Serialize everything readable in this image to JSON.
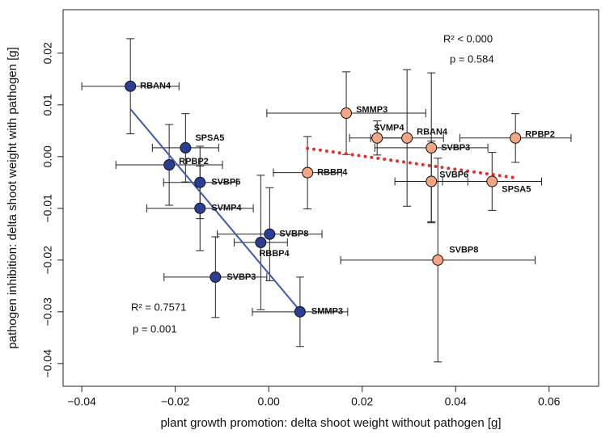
{
  "chart_data": {
    "type": "scatter",
    "x_label": "plant growth promotion: delta shoot weight without pathogen [g]",
    "y_label": "pathogen inhibition: delta shoot weight with pathogen [g]",
    "xlim": [
      -0.044,
      0.0706
    ],
    "ylim": [
      -0.0444,
      0.0284
    ],
    "xticks": [
      {
        "value": -0.04,
        "label": "−0.04"
      },
      {
        "value": -0.02,
        "label": "−0.02"
      },
      {
        "value": 0,
        "label": "0.00"
      },
      0.02,
      0.04,
      0.06
    ],
    "yticks": [
      {
        "value": -0.04,
        "label": "−0.04"
      },
      {
        "value": -0.03,
        "label": "−0.03"
      },
      {
        "value": -0.02,
        "label": "−0.02"
      },
      {
        "value": -0.01,
        "label": "−0.01"
      },
      {
        "value": 0,
        "label": "0.00"
      },
      0.01,
      0.02
    ],
    "series": [
      {
        "color": "#2a3f94",
        "fit_color": "#3a5bb0",
        "labels": [
          "RBAN4",
          "SPSA5",
          "RPBP2",
          "SVBP6",
          "SVMP4",
          "SVBP8",
          "RBBP4",
          "SVBP3",
          "SMMP3"
        ],
        "x": [
          -0.0296,
          -0.0178,
          -0.0213,
          -0.0147,
          -0.0147,
          0.0002,
          -0.0017,
          -0.0114,
          0.0067
        ],
        "values": [
          0.0136,
          0.0017,
          -0.0016,
          -0.005,
          -0.01,
          -0.015,
          -0.0166,
          -0.0233,
          -0.03
        ],
        "xerr": [
          0.0104,
          0.0071,
          0.0114,
          0.0078,
          0.0114,
          0.0112,
          0.0057,
          0.011,
          0.0102
        ],
        "yerr": [
          0.0092,
          0.0066,
          0.0078,
          0.007,
          0.0082,
          0.009,
          0.013,
          0.0078,
          0.0067
        ],
        "fit": {
          "x": [
            -0.0296,
            0.0067
          ],
          "y": [
            0.0092,
            -0.0298
          ],
          "style": "solid"
        },
        "annotations": [
          "R² = 0.7571",
          "p = 0.001"
        ]
      },
      {
        "color": "#f4a582",
        "fit_color": "#e0302a",
        "labels": [
          "SMMP3",
          "SVMP4",
          "RBAN4",
          "SVBP3",
          "RPBP2",
          "RBBP4",
          "SVBP6",
          "SPSA5",
          "SVBP8"
        ],
        "x": [
          0.0166,
          0.0232,
          0.0296,
          0.0348,
          0.0528,
          0.0083,
          0.0348,
          0.0478,
          0.0362
        ],
        "values": [
          0.0084,
          0.0036,
          0.0036,
          0.0017,
          0.0036,
          -0.0031,
          -0.0048,
          -0.0048,
          -0.02
        ],
        "xerr": [
          0.017,
          0.0059,
          0.0078,
          0.0121,
          0.0119,
          0.0073,
          0.0078,
          0.0106,
          0.0208
        ],
        "yerr": [
          0.008,
          0.0033,
          0.0132,
          0.0145,
          0.0047,
          0.007,
          0.0078,
          0.0056,
          0.0197
        ],
        "fit": {
          "x": [
            0.0083,
            0.0528
          ],
          "y": [
            0.0016,
            -0.0041
          ],
          "style": "dotted"
        },
        "annotations": [
          "R² < 0.000",
          "p = 0.584"
        ]
      }
    ]
  }
}
